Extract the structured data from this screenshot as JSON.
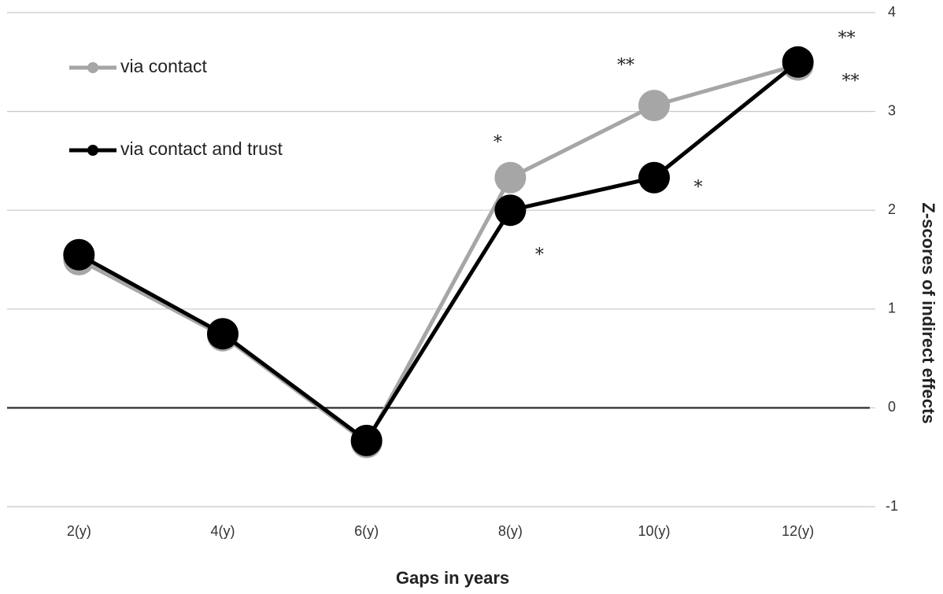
{
  "chart_data": {
    "type": "line",
    "xlabel": "Gaps in years",
    "ylabel": "Z-scores  of indirect effects",
    "categories": [
      "2(y)",
      "4(y)",
      "6(y)",
      "8(y)",
      "10(y)",
      "12(y)"
    ],
    "series": [
      {
        "name": "via contact",
        "color": "#a6a6a6",
        "values": [
          1.5,
          0.73,
          -0.35,
          2.33,
          3.06,
          3.47
        ]
      },
      {
        "name": "via contact and trust",
        "color": "#000000",
        "values": [
          1.55,
          0.75,
          -0.33,
          2.0,
          2.33,
          3.5
        ]
      }
    ],
    "annotations": [
      {
        "text": "*",
        "series": "via contact",
        "category": "8(y)"
      },
      {
        "text": "*",
        "series": "via contact and trust",
        "category": "8(y)"
      },
      {
        "text": "**",
        "series": "via contact",
        "category": "10(y)"
      },
      {
        "text": "*",
        "series": "via contact and trust",
        "category": "10(y)"
      },
      {
        "text": "**",
        "series": "via contact",
        "category": "12(y)"
      },
      {
        "text": "**",
        "series": "via contact and trust",
        "category": "12(y)"
      }
    ],
    "ylim": [
      -1,
      4
    ],
    "yticks": [
      -1,
      0,
      1,
      2,
      3,
      4
    ],
    "y_axis_side": "right",
    "grid": true,
    "legend": "upper left"
  }
}
